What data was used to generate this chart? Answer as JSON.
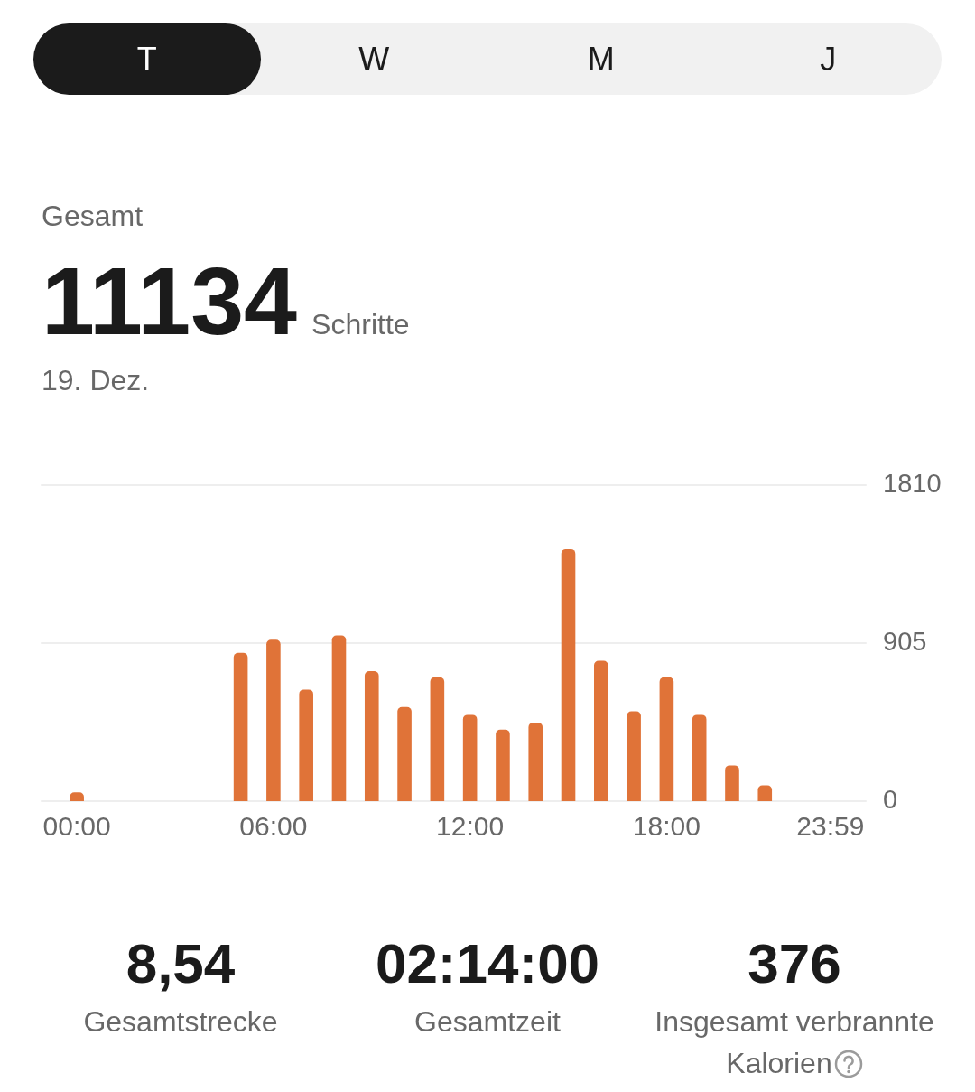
{
  "chart_data": [
    {
      "type": "other",
      "annotations": [
        "T",
        "W",
        "M",
        "J"
      ]
    },
    {
      "type": "bar",
      "title": "Gesamt",
      "annotations": [
        "11134",
        "Schritte"
      ],
      "subtitle": "19. Dez.",
      "categories": [
        "00:00",
        null,
        null,
        null,
        null,
        null,
        "06:00",
        null,
        null,
        null,
        null,
        null,
        "12:00",
        null,
        null,
        null,
        null,
        null,
        "18:00",
        null,
        null,
        null,
        null,
        "23:59"
      ],
      "values": [
        50,
        0,
        0,
        0,
        0,
        850,
        925,
        640,
        950,
        745,
        540,
        710,
        495,
        410,
        450,
        1445,
        805,
        515,
        710,
        495,
        205,
        90,
        0,
        0
      ],
      "color": "#e07338",
      "ylim": [
        0,
        1810
      ],
      "yticks": [
        0,
        905,
        1810
      ],
      "grid": "y"
    },
    {
      "type": "other",
      "annotations": [
        "8,54",
        "Gesamtstrecke",
        "02:14:00",
        "Gesamtzeit",
        "376",
        "Insgesamt verbrannte Kalorien"
      ]
    }
  ]
}
